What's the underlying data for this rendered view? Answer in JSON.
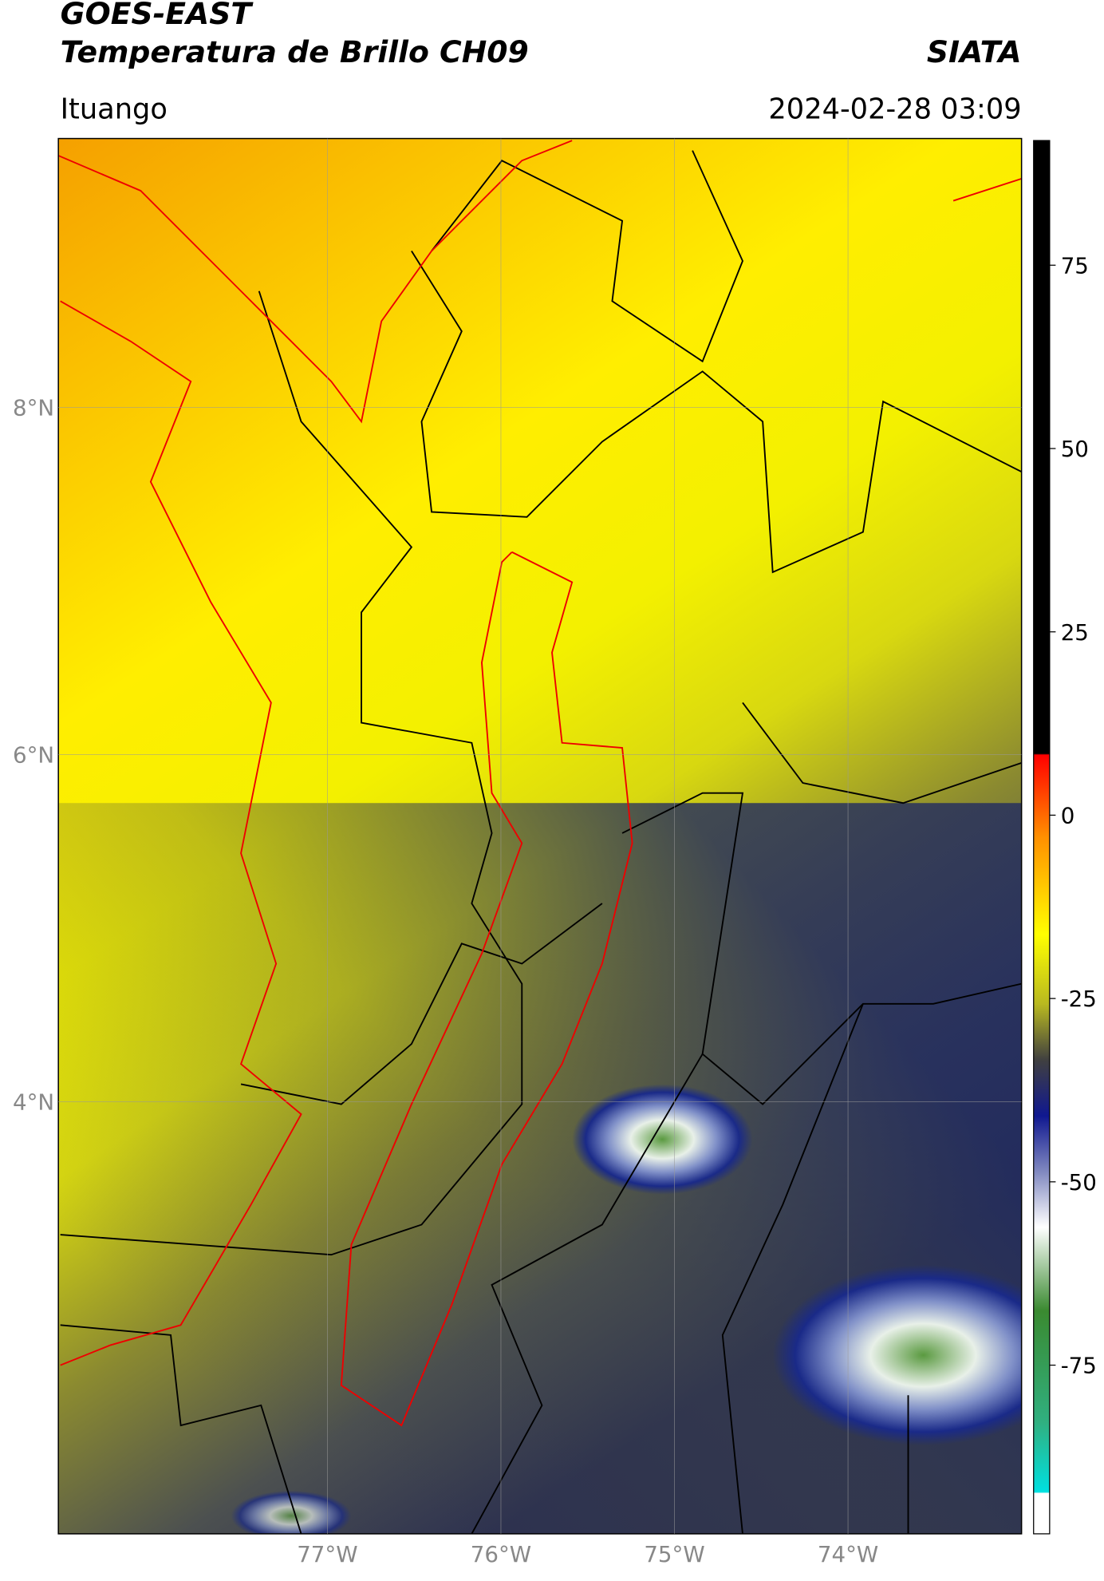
{
  "header": {
    "title": "GOES-EAST",
    "subtitle": "Temperatura de Brillo CH09",
    "source": "SIATA",
    "region": "Ituango",
    "timestamp": "2024-02-28 03:09"
  },
  "map": {
    "xlim": [
      -78.55,
      -73.0
    ],
    "ylim": [
      1.51,
      9.55
    ],
    "xticks": [
      {
        "value": -77,
        "label": "77°W"
      },
      {
        "value": -76,
        "label": "76°W"
      },
      {
        "value": -75,
        "label": "75°W"
      },
      {
        "value": -74,
        "label": "74°W"
      }
    ],
    "yticks": [
      {
        "value": 8,
        "label": "8°N"
      },
      {
        "value": 6,
        "label": "6°N"
      },
      {
        "value": 4,
        "label": "4°N"
      }
    ],
    "grid": true
  },
  "colorbar": {
    "lim": [
      -98,
      92
    ],
    "ticks": [
      75,
      50,
      25,
      0,
      -25,
      -50,
      -75
    ]
  }
}
